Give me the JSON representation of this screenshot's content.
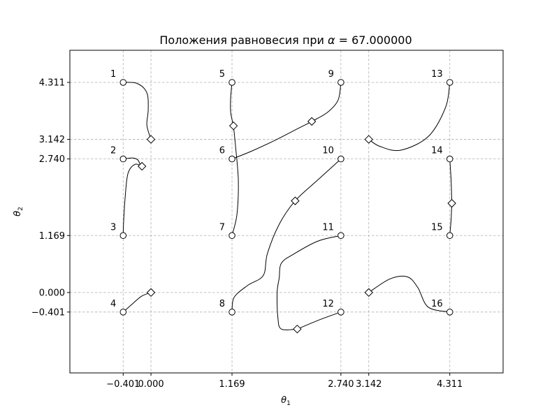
{
  "chart_data": {
    "type": "scatter",
    "title_prefix": "Положения равновесия при ",
    "title_symbol": "α",
    "title_suffix": " = 67.000000",
    "xlabel": {
      "base": "θ",
      "sub": "1"
    },
    "ylabel": {
      "base": "θ",
      "sub": "2"
    },
    "xlim": [
      -1.17,
      5.08
    ],
    "ylim": [
      -1.65,
      4.97
    ],
    "grid": true,
    "xticks": [
      {
        "value": -0.401,
        "label": "−0.401"
      },
      {
        "value": 0.0,
        "label": "0.000"
      },
      {
        "value": 1.169,
        "label": "1.169"
      },
      {
        "value": 2.74,
        "label": "2.740"
      },
      {
        "value": 3.142,
        "label": "3.142"
      },
      {
        "value": 4.311,
        "label": "4.311"
      }
    ],
    "yticks": [
      {
        "value": 4.311,
        "label": "4.311"
      },
      {
        "value": 3.142,
        "label": "3.142"
      },
      {
        "value": 2.74,
        "label": "2.740"
      },
      {
        "value": 1.169,
        "label": "1.169"
      },
      {
        "value": 0.0,
        "label": "0.000"
      },
      {
        "value": -0.401,
        "label": "−0.401"
      }
    ],
    "start_points": [
      {
        "label": "1",
        "x": -0.401,
        "y": 4.311
      },
      {
        "label": "2",
        "x": -0.401,
        "y": 2.74
      },
      {
        "label": "3",
        "x": -0.401,
        "y": 1.169
      },
      {
        "label": "4",
        "x": -0.401,
        "y": -0.401
      },
      {
        "label": "5",
        "x": 1.169,
        "y": 4.311
      },
      {
        "label": "6",
        "x": 1.169,
        "y": 2.74
      },
      {
        "label": "7",
        "x": 1.169,
        "y": 1.169
      },
      {
        "label": "8",
        "x": 1.169,
        "y": -0.401
      },
      {
        "label": "9",
        "x": 2.74,
        "y": 4.311
      },
      {
        "label": "10",
        "x": 2.74,
        "y": 2.74
      },
      {
        "label": "11",
        "x": 2.74,
        "y": 1.169
      },
      {
        "label": "12",
        "x": 2.74,
        "y": -0.401
      },
      {
        "label": "13",
        "x": 4.311,
        "y": 4.311
      },
      {
        "label": "14",
        "x": 4.311,
        "y": 2.74
      },
      {
        "label": "15",
        "x": 4.311,
        "y": 1.169
      },
      {
        "label": "16",
        "x": 4.311,
        "y": -0.401
      }
    ],
    "end_points": [
      {
        "x": 0.0,
        "y": 3.142
      },
      {
        "x": -0.13,
        "y": 2.59
      },
      {
        "x": 0.0,
        "y": 0.0
      },
      {
        "x": 1.19,
        "y": 3.42
      },
      {
        "x": 2.32,
        "y": 3.51
      },
      {
        "x": 2.08,
        "y": 1.88
      },
      {
        "x": 2.11,
        "y": -0.75
      },
      {
        "x": 3.142,
        "y": 3.142
      },
      {
        "x": 4.34,
        "y": 1.83
      },
      {
        "x": 3.142,
        "y": 0.0
      }
    ],
    "trajectories": [
      {
        "from": "1",
        "points": [
          [
            -0.401,
            4.311
          ],
          [
            -0.2,
            4.29
          ],
          [
            -0.06,
            4.1
          ],
          [
            -0.04,
            3.75
          ],
          [
            -0.06,
            3.45
          ],
          [
            -0.02,
            3.22
          ],
          [
            0.0,
            3.142
          ]
        ]
      },
      {
        "from": "2",
        "points": [
          [
            -0.401,
            2.74
          ],
          [
            -0.26,
            2.76
          ],
          [
            -0.19,
            2.72
          ],
          [
            -0.16,
            2.64
          ],
          [
            -0.13,
            2.59
          ]
        ]
      },
      {
        "from": "3",
        "points": [
          [
            -0.401,
            1.169
          ],
          [
            -0.395,
            1.45
          ],
          [
            -0.37,
            2.0
          ],
          [
            -0.33,
            2.45
          ],
          [
            -0.23,
            2.63
          ],
          [
            -0.13,
            2.59
          ]
        ]
      },
      {
        "from": "4",
        "points": [
          [
            -0.401,
            -0.401
          ],
          [
            -0.28,
            -0.25
          ],
          [
            -0.14,
            -0.08
          ],
          [
            0.0,
            0.0
          ]
        ]
      },
      {
        "from": "5",
        "points": [
          [
            1.169,
            4.311
          ],
          [
            1.15,
            4.0
          ],
          [
            1.15,
            3.7
          ],
          [
            1.19,
            3.42
          ]
        ]
      },
      {
        "from": "6",
        "points": [
          [
            1.169,
            2.74
          ],
          [
            1.45,
            2.9
          ],
          [
            1.8,
            3.13
          ],
          [
            2.1,
            3.35
          ],
          [
            2.32,
            3.51
          ],
          [
            2.55,
            3.7
          ],
          [
            2.7,
            3.95
          ],
          [
            2.74,
            4.311
          ]
        ]
      },
      {
        "from": "7",
        "points": [
          [
            1.169,
            1.169
          ],
          [
            1.24,
            1.6
          ],
          [
            1.26,
            2.3
          ],
          [
            1.22,
            3.0
          ],
          [
            1.19,
            3.42
          ]
        ]
      },
      {
        "from": "8",
        "points": [
          [
            1.169,
            -0.401
          ],
          [
            1.2,
            -0.1
          ],
          [
            1.4,
            0.15
          ],
          [
            1.62,
            0.35
          ],
          [
            1.68,
            0.8
          ],
          [
            1.85,
            1.4
          ],
          [
            2.08,
            1.88
          ],
          [
            2.4,
            2.3
          ],
          [
            2.74,
            2.74
          ]
        ]
      },
      {
        "from": "11",
        "points": [
          [
            2.74,
            1.169
          ],
          [
            2.4,
            1.05
          ],
          [
            2.05,
            0.78
          ],
          [
            1.88,
            0.6
          ],
          [
            1.85,
            0.3
          ],
          [
            1.82,
            0.0
          ],
          [
            1.83,
            -0.5
          ],
          [
            1.88,
            -0.75
          ],
          [
            2.11,
            -0.75
          ]
        ]
      },
      {
        "from": "12",
        "points": [
          [
            2.74,
            -0.401
          ],
          [
            2.45,
            -0.55
          ],
          [
            2.11,
            -0.75
          ]
        ]
      },
      {
        "from": "13",
        "points": [
          [
            4.311,
            4.311
          ],
          [
            4.25,
            3.8
          ],
          [
            4.0,
            3.2
          ],
          [
            3.6,
            2.92
          ],
          [
            3.3,
            3.0
          ],
          [
            3.142,
            3.142
          ]
        ]
      },
      {
        "from": "14",
        "points": [
          [
            4.311,
            2.74
          ],
          [
            4.33,
            2.3
          ],
          [
            4.34,
            1.83
          ]
        ]
      },
      {
        "from": "15",
        "points": [
          [
            4.311,
            1.169
          ],
          [
            4.33,
            1.5
          ],
          [
            4.34,
            1.83
          ]
        ]
      },
      {
        "from": "16",
        "points": [
          [
            4.311,
            -0.401
          ],
          [
            4.0,
            -0.3
          ],
          [
            3.85,
            0.1
          ],
          [
            3.7,
            0.32
          ],
          [
            3.45,
            0.28
          ],
          [
            3.142,
            0.0
          ]
        ]
      }
    ]
  }
}
